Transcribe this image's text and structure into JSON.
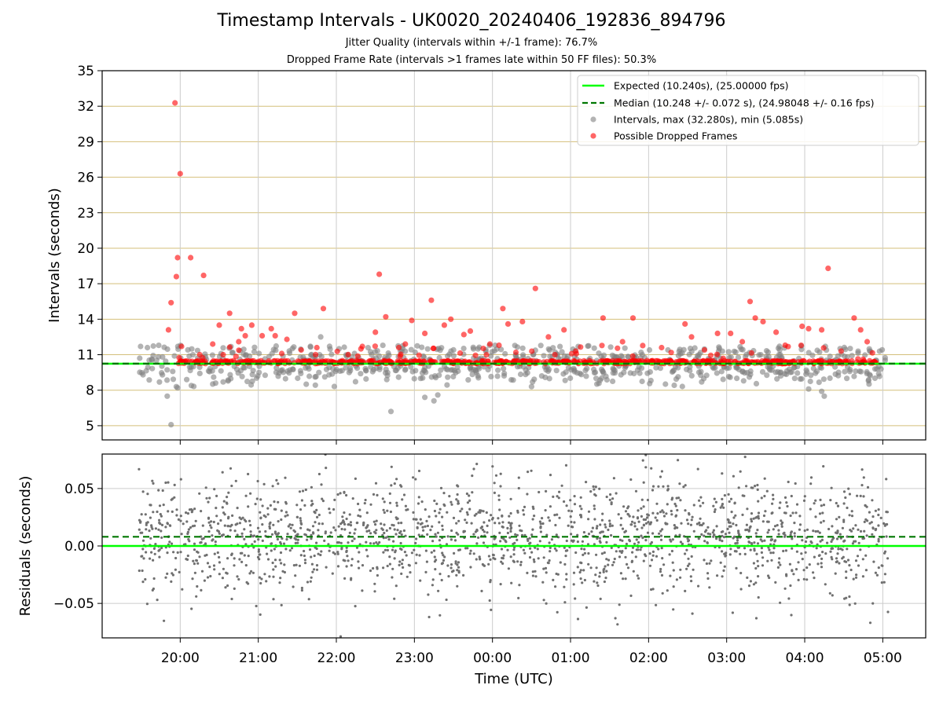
{
  "header": {
    "title": "Timestamp Intervals - UK0020_20240406_192836_894796",
    "subtitle1": "Jitter Quality (intervals within +/-1 frame): 76.7%",
    "subtitle2": "Dropped Frame Rate (intervals >1 frames late within 50 FF files): 50.3%"
  },
  "chart_data": [
    {
      "type": "scatter",
      "panel": "top",
      "ylabel": "Intervals (seconds)",
      "ylim": [
        3.8,
        35
      ],
      "yticks": [
        5,
        8,
        11,
        14,
        17,
        20,
        23,
        26,
        29,
        32,
        35
      ],
      "ygrid": true,
      "ygrid_color": "#d4bf7a",
      "legend_placement": "top-right",
      "legend": [
        "Expected (10.240s), (25.00000 fps)",
        "Median (10.248 +/- 0.072 s), (24.98048 +/- 0.16 fps)",
        "Intervals, max (32.280s), min (5.085s)",
        "Possible Dropped Frames"
      ],
      "expected_interval": 10.24,
      "median_interval": 10.248,
      "max_interval": 32.28,
      "min_interval": 5.085,
      "colors": {
        "expected": "#00ff00",
        "median": "#007700",
        "intervals": "#808080",
        "dropped": "#ff0000"
      },
      "dropped_outliers_approx": [
        [
          "19:51",
          13.1
        ],
        [
          "19:53",
          15.4
        ],
        [
          "19:56",
          32.28
        ],
        [
          "19:57",
          17.6
        ],
        [
          "19:58",
          19.2
        ],
        [
          "20:00",
          26.3
        ],
        [
          "20:01",
          11.7
        ],
        [
          "20:08",
          19.2
        ],
        [
          "20:15",
          11.0
        ],
        [
          "20:18",
          17.7
        ],
        [
          "20:25",
          11.9
        ],
        [
          "20:30",
          13.5
        ],
        [
          "20:33",
          11.0
        ],
        [
          "20:38",
          14.5
        ],
        [
          "20:45",
          12.1
        ],
        [
          "20:47",
          13.2
        ],
        [
          "20:50",
          12.6
        ],
        [
          "20:55",
          13.5
        ],
        [
          "21:03",
          12.6
        ],
        [
          "21:10",
          13.2
        ],
        [
          "21:13",
          12.6
        ],
        [
          "21:18",
          11.1
        ],
        [
          "21:22",
          12.3
        ],
        [
          "21:28",
          14.5
        ],
        [
          "21:33",
          11.4
        ],
        [
          "21:45",
          11.6
        ],
        [
          "21:50",
          14.9
        ],
        [
          "22:20",
          11.7
        ],
        [
          "22:30",
          12.9
        ],
        [
          "22:33",
          17.8
        ],
        [
          "22:38",
          14.2
        ],
        [
          "22:48",
          11.6
        ],
        [
          "22:53",
          11.9
        ],
        [
          "22:58",
          13.9
        ],
        [
          "23:08",
          12.8
        ],
        [
          "23:13",
          15.6
        ],
        [
          "23:23",
          13.5
        ],
        [
          "23:28",
          14.0
        ],
        [
          "23:38",
          12.7
        ],
        [
          "23:43",
          13.0
        ],
        [
          "23:58",
          11.9
        ],
        [
          "00:05",
          11.8
        ],
        [
          "00:08",
          14.9
        ],
        [
          "00:12",
          13.6
        ],
        [
          "00:18",
          11.2
        ],
        [
          "00:23",
          13.8
        ],
        [
          "00:33",
          16.6
        ],
        [
          "00:43",
          12.5
        ],
        [
          "00:48",
          11.0
        ],
        [
          "00:55",
          13.1
        ],
        [
          "01:25",
          14.1
        ],
        [
          "01:40",
          12.1
        ],
        [
          "01:48",
          14.1
        ],
        [
          "02:10",
          11.6
        ],
        [
          "02:28",
          13.6
        ],
        [
          "02:33",
          12.5
        ],
        [
          "02:43",
          11.4
        ],
        [
          "02:53",
          12.8
        ],
        [
          "03:03",
          12.8
        ],
        [
          "03:12",
          12.1
        ],
        [
          "03:18",
          15.5
        ],
        [
          "03:22",
          14.1
        ],
        [
          "03:28",
          13.8
        ],
        [
          "03:38",
          12.9
        ],
        [
          "03:45",
          11.8
        ],
        [
          "03:58",
          13.4
        ],
        [
          "04:03",
          13.2
        ],
        [
          "04:13",
          13.1
        ],
        [
          "04:18",
          18.3
        ],
        [
          "04:28",
          11.3
        ],
        [
          "04:38",
          14.1
        ],
        [
          "04:43",
          13.1
        ],
        [
          "04:48",
          12.1
        ]
      ],
      "gray_outliers_approx": [
        [
          "19:50",
          7.5
        ],
        [
          "19:53",
          5.085
        ],
        [
          "19:57",
          8.3
        ],
        [
          "19:58",
          8.2
        ],
        [
          "20:05",
          8.9
        ],
        [
          "20:33",
          8.7
        ],
        [
          "21:48",
          12.5
        ],
        [
          "22:42",
          6.2
        ],
        [
          "23:08",
          7.4
        ],
        [
          "23:15",
          7.1
        ],
        [
          "23:18",
          7.6
        ],
        [
          "00:30",
          8.3
        ],
        [
          "04:03",
          8.1
        ],
        [
          "04:13",
          7.9
        ],
        [
          "04:15",
          7.5
        ]
      ]
    },
    {
      "type": "scatter",
      "panel": "bottom",
      "xlabel": "Time (UTC)",
      "ylabel": "Residuals (seconds)",
      "ylim": [
        -0.08,
        0.08
      ],
      "yticks": [
        "0.05",
        "0.00",
        "−0.05"
      ],
      "ytick_values": [
        0.05,
        0.0,
        -0.05
      ],
      "ygrid": true,
      "expected_residual": 0.0,
      "median_residual": 0.008,
      "residual_spread_std": 0.026,
      "marker_color": "#707070",
      "x_ticks": [
        "20:00",
        "21:00",
        "22:00",
        "23:00",
        "00:00",
        "01:00",
        "02:00",
        "03:00",
        "04:00",
        "05:00"
      ],
      "x_range": [
        "19:00",
        "05:33"
      ],
      "data_range": [
        "19:28",
        "05:04"
      ]
    }
  ]
}
